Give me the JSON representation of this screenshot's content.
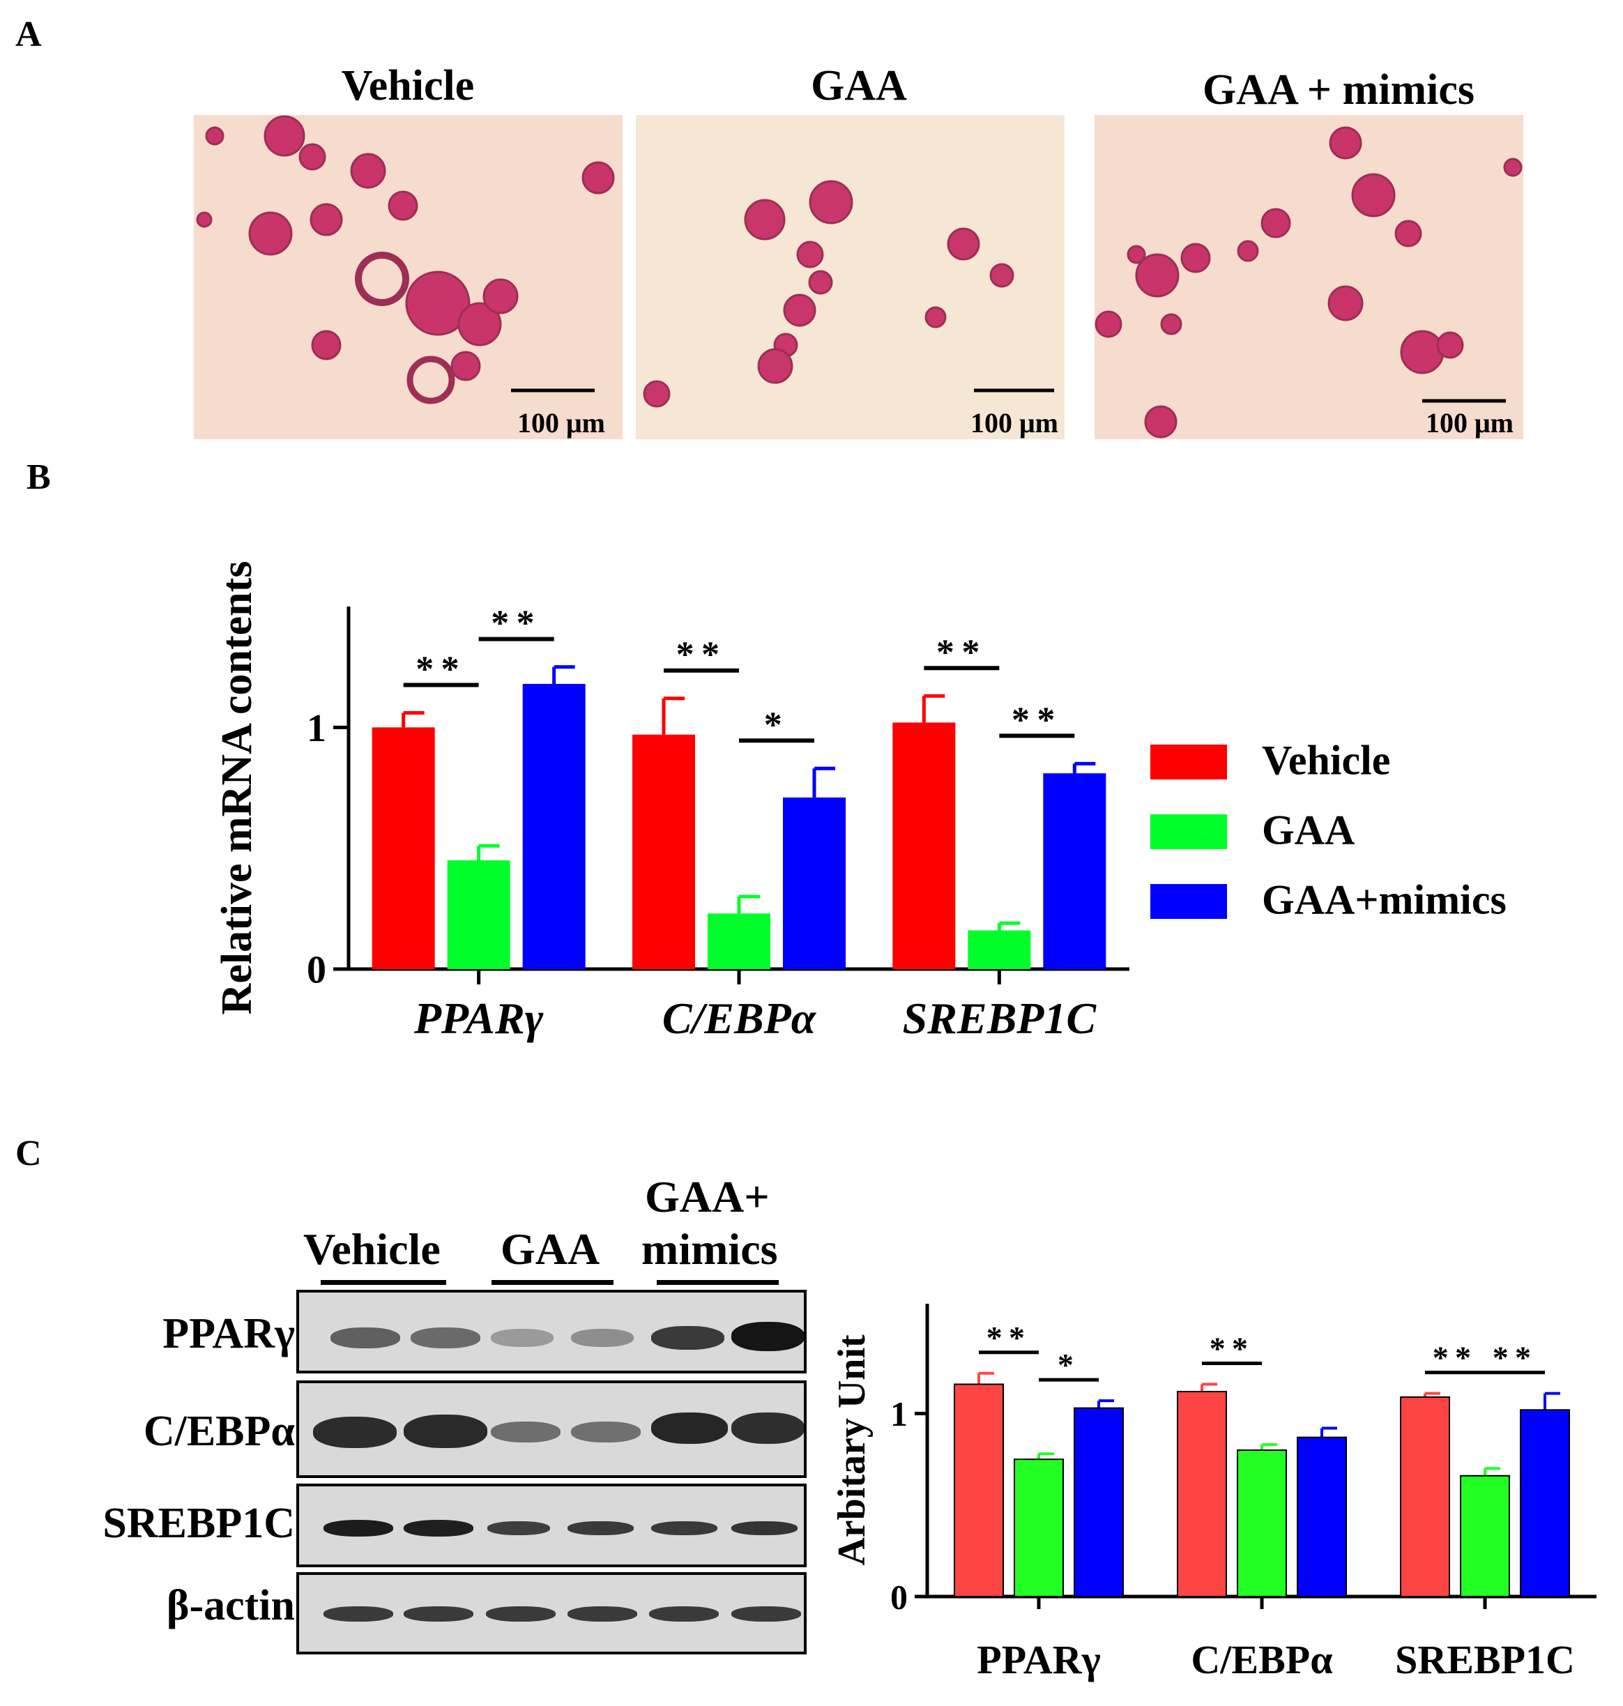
{
  "panels": {
    "a": "A",
    "b": "B",
    "c": "C"
  },
  "panel_a": {
    "images": [
      {
        "title": "Vehicle",
        "scale_bar": "100 μm"
      },
      {
        "title": "GAA",
        "scale_bar": "100 μm"
      },
      {
        "title": "GAA + mimics",
        "scale_bar": "100 μm"
      }
    ]
  },
  "panel_c_blot": {
    "groups": [
      "Vehicle",
      "GAA",
      "GAA+",
      "mimics"
    ],
    "rows": [
      "PPARγ",
      "C/EBPα",
      "SREBP1C",
      "β-actin"
    ]
  },
  "chart_data": [
    {
      "type": "bar",
      "panel": "B",
      "ylabel": "Relative mRNA contents",
      "xlabel": "",
      "ylim": [
        0,
        1.5
      ],
      "yticks": [
        "0",
        "1"
      ],
      "categories": [
        "PPARγ",
        "C/EBPα",
        "SREBP1C"
      ],
      "category_style": "italic",
      "series": [
        {
          "name": "Vehicle",
          "color": "#ff0000",
          "values": [
            1.0,
            0.97,
            1.02
          ],
          "errors": [
            0.06,
            0.15,
            0.11
          ]
        },
        {
          "name": "GAA",
          "color": "#00ff2a",
          "values": [
            0.45,
            0.23,
            0.16
          ],
          "errors": [
            0.06,
            0.07,
            0.03
          ]
        },
        {
          "name": "GAA+mimics",
          "color": "#0000ff",
          "values": [
            1.18,
            0.71,
            0.81
          ],
          "errors": [
            0.07,
            0.12,
            0.04
          ]
        }
      ],
      "significance": [
        {
          "category": 0,
          "from": 0,
          "to": 1,
          "label": "**"
        },
        {
          "category": 0,
          "from": 1,
          "to": 2,
          "label": "**"
        },
        {
          "category": 1,
          "from": 0,
          "to": 1,
          "label": "**"
        },
        {
          "category": 1,
          "from": 1,
          "to": 2,
          "label": "*"
        },
        {
          "category": 2,
          "from": 0,
          "to": 1,
          "label": "**"
        },
        {
          "category": 2,
          "from": 1,
          "to": 2,
          "label": "**"
        }
      ],
      "legend": "right"
    },
    {
      "type": "bar",
      "panel": "C",
      "ylabel": "Arbitary Unit",
      "xlabel": "",
      "ylim": [
        0,
        1.6
      ],
      "yticks": [
        "0",
        "1"
      ],
      "categories": [
        "PPARγ",
        "C/EBPα",
        "SREBP1C"
      ],
      "category_style": "bold",
      "series": [
        {
          "name": "Vehicle",
          "color": "#ff4444",
          "values": [
            1.16,
            1.12,
            1.09
          ],
          "errors": [
            0.06,
            0.04,
            0.02
          ]
        },
        {
          "name": "GAA",
          "color": "#22ff22",
          "values": [
            0.75,
            0.8,
            0.66
          ],
          "errors": [
            0.03,
            0.03,
            0.04
          ]
        },
        {
          "name": "GAA+mimics",
          "color": "#0000ff",
          "values": [
            1.03,
            0.87,
            1.02
          ],
          "errors": [
            0.04,
            0.05,
            0.09
          ]
        }
      ],
      "significance": [
        {
          "category": 0,
          "from": 0,
          "to": 1,
          "label": "**"
        },
        {
          "category": 0,
          "from": 1,
          "to": 2,
          "label": "*"
        },
        {
          "category": 1,
          "from": 0,
          "to": 1,
          "label": "**"
        },
        {
          "category": 2,
          "from": 0,
          "to": 1,
          "label": "**"
        },
        {
          "category": 2,
          "from": 1,
          "to": 2,
          "label": "**"
        }
      ]
    }
  ]
}
